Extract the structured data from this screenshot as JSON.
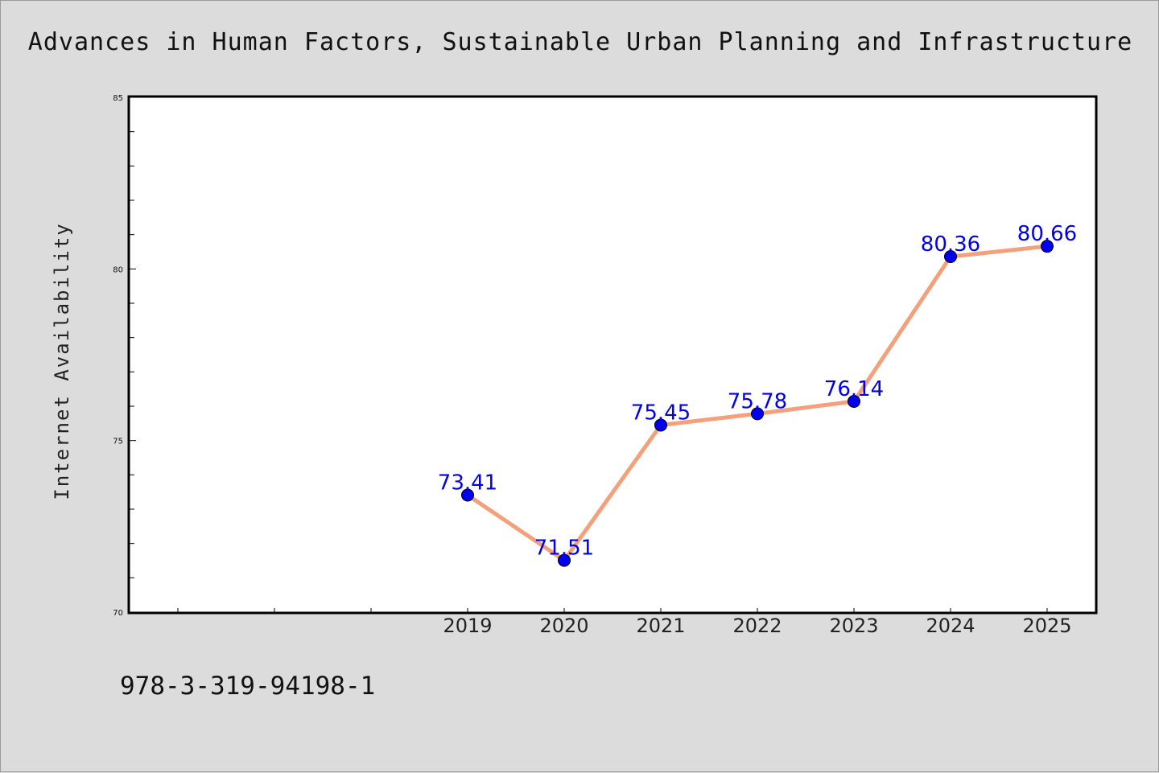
{
  "title": "Advances in Human Factors, Sustainable Urban Planning and Infrastructure",
  "footer_text": "978-3-319-94198-1",
  "chart_data": {
    "type": "line",
    "ylabel": "Internet Availability",
    "xlabel": "",
    "x": [
      "2019",
      "2020",
      "2021",
      "2022",
      "2023",
      "2024",
      "2025"
    ],
    "series": [
      {
        "values": [
          73.41,
          71.51,
          75.45,
          75.78,
          76.14,
          80.36,
          80.66
        ],
        "labels": [
          "73.41",
          "71.51",
          "75.45",
          "75.78",
          "76.14",
          "80.36",
          "80.66"
        ],
        "line_color": "#f4a07a",
        "marker_color": "#0000ee"
      }
    ],
    "ylim": [
      70,
      85
    ],
    "yticks": [
      "70",
      "75",
      "80",
      "85"
    ],
    "grid": false,
    "legend": "none"
  }
}
